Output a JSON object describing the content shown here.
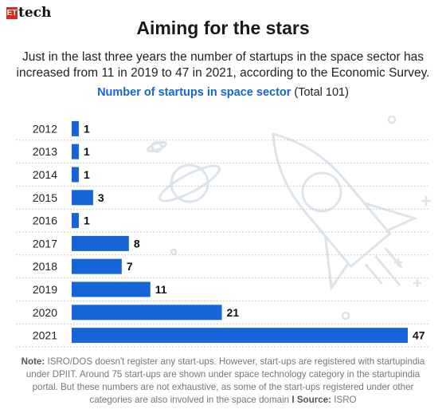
{
  "brand": {
    "badge": "ET",
    "name": "tech"
  },
  "title": "Aiming for the stars",
  "subtitle": "Just in the last three years the number of startups in the space sector has increased from 11 in 2019 to 47 in 2021, according to the Economic Survey.",
  "chart_heading": {
    "main": "Number of startups in space sector",
    "total": "(Total 101)"
  },
  "chart_data": {
    "type": "bar",
    "orientation": "horizontal",
    "categories": [
      "2012",
      "2013",
      "2014",
      "2015",
      "2016",
      "2017",
      "2018",
      "2019",
      "2020",
      "2021"
    ],
    "values": [
      1,
      1,
      1,
      3,
      1,
      8,
      7,
      11,
      21,
      47
    ],
    "title": "Number of startups in space sector",
    "grid": false,
    "bar_color": "#1565d8"
  },
  "note": {
    "label": "Note:",
    "text": "ISRO/DOS doesn't register any start-ups. However, start-ups are registered with startupindia under DPIIT. Around 75 start-ups are shown under space technology category in the startupindia portal. But these numbers are not exhaustive, as some of the start-ups registered under other categories are also involved in the space domain",
    "separator": "I",
    "source_label": "Source:",
    "source": "ISRO"
  },
  "colors": {
    "accent": "#1565d8",
    "brand_red": "#e1251b",
    "decoration": "#dce3ea"
  }
}
